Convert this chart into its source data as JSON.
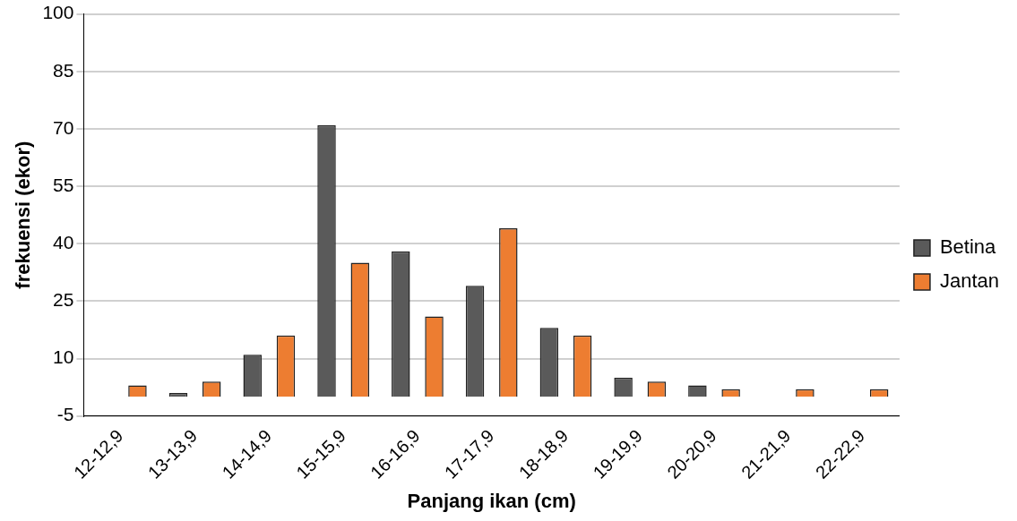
{
  "chart_data": {
    "type": "bar",
    "xlabel": "Panjang ikan (cm)",
    "ylabel": "frekuensi (ekor)",
    "categories": [
      "12-12,9",
      "13-13,9",
      "14-14,9",
      "15-15,9",
      "16-16,9",
      "17-17,9",
      "18-18,9",
      "19-19,9",
      "20-20,9",
      "21-21,9",
      "22-22,9"
    ],
    "series": [
      {
        "name": "Betina",
        "color": "#5a5a5a",
        "values": [
          0,
          1,
          11,
          71,
          38,
          29,
          18,
          5,
          3,
          0,
          0
        ]
      },
      {
        "name": "Jantan",
        "color": "#ed7d31",
        "values": [
          3,
          4,
          16,
          35,
          21,
          44,
          16,
          4,
          2,
          2,
          2
        ]
      }
    ],
    "ylim": [
      -5,
      100
    ],
    "yticks": [
      -5,
      10,
      25,
      40,
      55,
      70,
      85,
      100
    ],
    "grid": "y",
    "legend": "right"
  }
}
